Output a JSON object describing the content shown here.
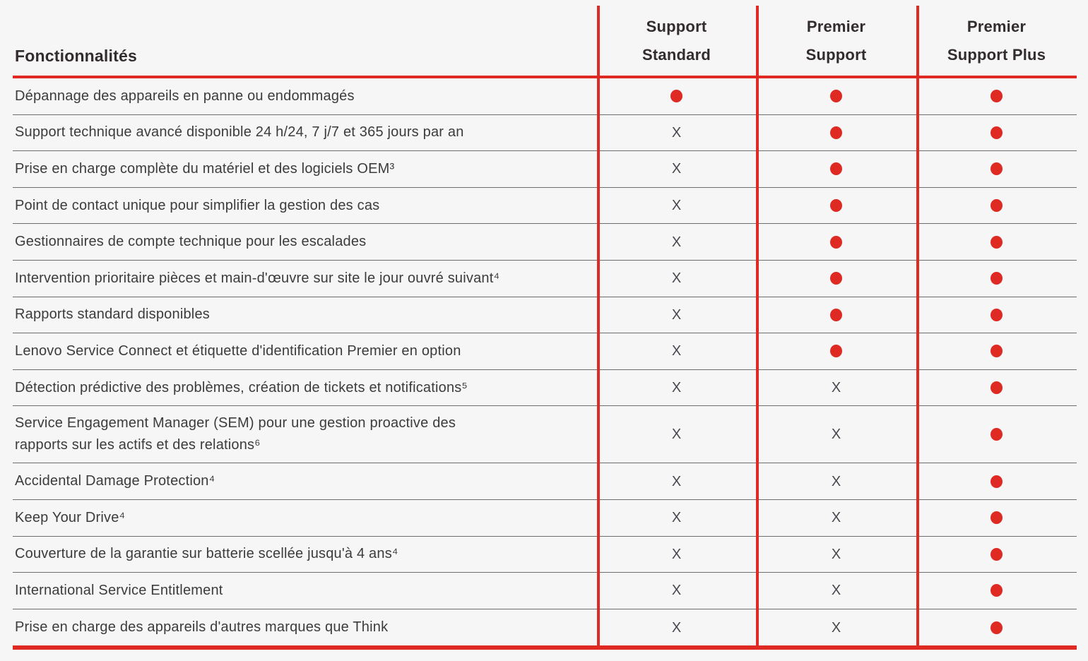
{
  "colors": {
    "accent_red": "#de2a23",
    "header_text": "#332c2e",
    "feature_text": "#3d3b3c",
    "x_mark": "#45494f",
    "separator_gray": "#6e6e6e",
    "background": "#f6f6f6"
  },
  "table": {
    "header": {
      "features_label": "Fonctionnalités",
      "columns": [
        {
          "label": "Support\nStandard"
        },
        {
          "label": "Premier\nSupport"
        },
        {
          "label": "Premier\nSupport Plus"
        }
      ]
    },
    "marks": {
      "x_label": "X",
      "dot_meaning": "included",
      "x_meaning": "not included"
    },
    "rows": [
      {
        "feature": "Dépannage des appareils en panne ou endommagés",
        "values": [
          "dot",
          "dot",
          "dot"
        ]
      },
      {
        "feature": "Support technique avancé disponible 24 h/24, 7 j/7 et 365 jours par an",
        "values": [
          "x",
          "dot",
          "dot"
        ]
      },
      {
        "feature": "Prise en charge complète du matériel et des logiciels OEM³",
        "values": [
          "x",
          "dot",
          "dot"
        ]
      },
      {
        "feature": "Point de contact unique pour simplifier la gestion des cas",
        "values": [
          "x",
          "dot",
          "dot"
        ]
      },
      {
        "feature": "Gestionnaires de compte technique pour les escalades",
        "values": [
          "x",
          "dot",
          "dot"
        ]
      },
      {
        "feature": "Intervention prioritaire pièces et main-d'œuvre sur site le jour ouvré suivant⁴",
        "values": [
          "x",
          "dot",
          "dot"
        ]
      },
      {
        "feature": "Rapports standard disponibles",
        "values": [
          "x",
          "dot",
          "dot"
        ]
      },
      {
        "feature": "Lenovo Service Connect et étiquette d'identification Premier en option",
        "values": [
          "x",
          "dot",
          "dot"
        ]
      },
      {
        "feature": "Détection prédictive des problèmes, création de tickets et notifications⁵",
        "values": [
          "x",
          "x",
          "dot"
        ]
      },
      {
        "feature": "Service Engagement Manager (SEM) pour une gestion proactive des\nrapports sur les actifs et des relations⁶",
        "values": [
          "x",
          "x",
          "dot"
        ]
      },
      {
        "feature": "Accidental Damage Protection⁴",
        "values": [
          "x",
          "x",
          "dot"
        ]
      },
      {
        "feature": "Keep Your Drive⁴",
        "values": [
          "x",
          "x",
          "dot"
        ]
      },
      {
        "feature": "Couverture de la garantie sur batterie scellée jusqu'à 4 ans⁴",
        "values": [
          "x",
          "x",
          "dot"
        ]
      },
      {
        "feature": "International Service Entitlement",
        "values": [
          "x",
          "x",
          "dot"
        ]
      },
      {
        "feature": "Prise en charge des appareils d'autres marques que Think",
        "values": [
          "x",
          "x",
          "dot"
        ]
      }
    ]
  }
}
